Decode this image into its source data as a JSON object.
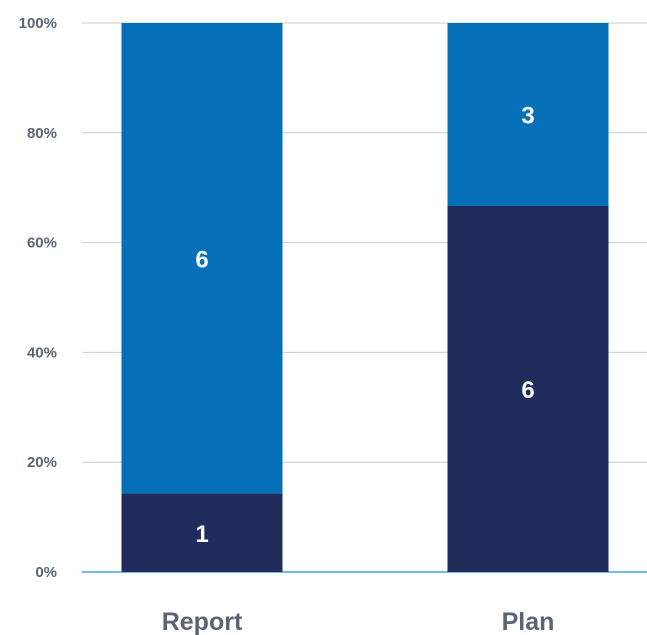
{
  "chart_data": {
    "type": "bar",
    "stacked": true,
    "normalized": true,
    "categories": [
      "Report",
      "Plan"
    ],
    "series": [
      {
        "values": [
          1,
          6
        ],
        "color": "#1f2c5c"
      },
      {
        "values": [
          6,
          3
        ],
        "color": "#0570b7"
      }
    ],
    "ylim": [
      0,
      100
    ],
    "yticks": [
      "0%",
      "20%",
      "40%",
      "60%",
      "80%",
      "100%"
    ],
    "grid": true,
    "gridline_color": "#c8ccd2",
    "baseline_color": "#4aa3d9",
    "label_color": "#5b6474",
    "data_label_color": "#ffffff"
  }
}
